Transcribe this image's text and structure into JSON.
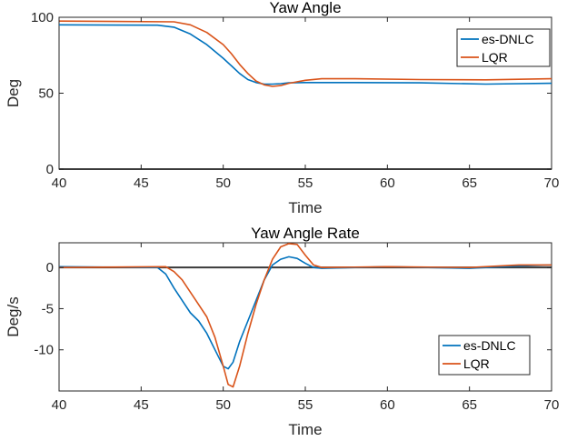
{
  "chart_data": [
    {
      "type": "line",
      "title": "Yaw Angle",
      "xlabel": "Time",
      "ylabel": "Deg",
      "xlim": [
        40,
        70
      ],
      "ylim": [
        0,
        100
      ],
      "xticks": [
        40,
        45,
        50,
        55,
        60,
        65,
        70
      ],
      "yticks": [
        0,
        50,
        100
      ],
      "reference_line": 0,
      "grid": false,
      "legend_position": "top-right",
      "series": [
        {
          "name": "es-DNLC",
          "color": "#0072BD",
          "x": [
            40,
            46,
            47,
            48,
            49,
            50,
            50.5,
            51,
            51.5,
            52,
            52.5,
            53,
            53.5,
            54,
            55,
            58,
            62,
            66,
            70
          ],
          "y": [
            95,
            94.8,
            93.5,
            89,
            82,
            73,
            68,
            63,
            59,
            57,
            56,
            56,
            56.3,
            56.8,
            57,
            57,
            56.8,
            56,
            56.5
          ]
        },
        {
          "name": "LQR",
          "color": "#D95319",
          "x": [
            40,
            47,
            48,
            49,
            50,
            50.5,
            51,
            51.5,
            52,
            52.5,
            53,
            53.5,
            54,
            55,
            56,
            58,
            62,
            66,
            70
          ],
          "y": [
            97.5,
            97,
            95,
            90,
            82,
            76,
            69,
            63,
            58,
            55.5,
            54.5,
            55,
            56.5,
            58.5,
            59.5,
            59.5,
            59,
            58.8,
            59.5
          ]
        }
      ]
    },
    {
      "type": "line",
      "title": "Yaw Angle Rate",
      "xlabel": "Time",
      "ylabel": "Deg/s",
      "xlim": [
        40,
        70
      ],
      "ylim": [
        -15,
        3
      ],
      "xticks": [
        40,
        45,
        50,
        55,
        60,
        65,
        70
      ],
      "yticks": [
        -10,
        -5,
        0
      ],
      "reference_line": 0,
      "grid": false,
      "legend_position": "bottom-right",
      "series": [
        {
          "name": "es-DNLC",
          "color": "#0072BD",
          "x": [
            40,
            46,
            46.5,
            47,
            47.5,
            48,
            48.5,
            49,
            49.5,
            50,
            50.3,
            50.6,
            51,
            51.5,
            52,
            52.5,
            53,
            53.5,
            54,
            54.5,
            55,
            55.5,
            56,
            60,
            65,
            68,
            70
          ],
          "y": [
            0.1,
            0,
            -0.8,
            -2.5,
            -4,
            -5.5,
            -6.5,
            -8,
            -10,
            -12,
            -12.3,
            -11.5,
            -9,
            -6.5,
            -4,
            -1.5,
            0.3,
            1,
            1.3,
            1.1,
            0.5,
            0,
            -0.1,
            0.1,
            -0.1,
            0.2,
            0.3
          ]
        },
        {
          "name": "LQR",
          "color": "#D95319",
          "x": [
            40,
            46.5,
            47,
            47.5,
            48,
            48.5,
            49,
            49.5,
            50,
            50.3,
            50.6,
            51,
            51.5,
            52,
            52.5,
            53,
            53.5,
            54,
            54.5,
            55,
            55.5,
            56,
            60,
            65,
            68,
            70
          ],
          "y": [
            0,
            0.1,
            -0.5,
            -1.5,
            -3,
            -4.5,
            -6,
            -8.5,
            -12,
            -14.2,
            -14.5,
            -12,
            -8,
            -4.5,
            -1.5,
            1,
            2.5,
            2.9,
            2.8,
            1.5,
            0.3,
            0,
            0.1,
            0,
            0.3,
            0.3
          ]
        }
      ]
    }
  ]
}
